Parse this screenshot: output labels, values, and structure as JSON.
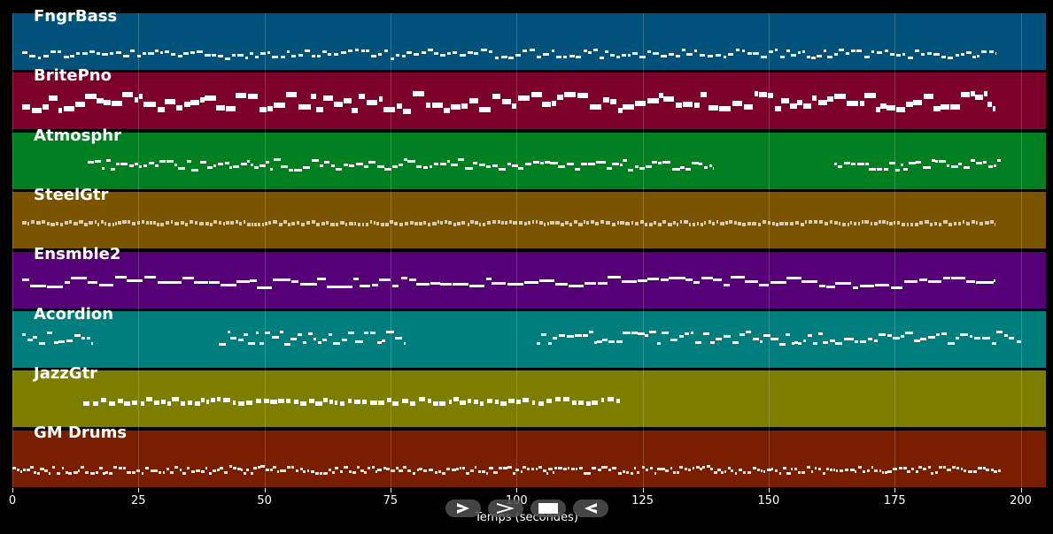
{
  "tracks": [
    {
      "name": "FngrBass",
      "color": "#00527a"
    },
    {
      "name": "BritePno",
      "color": "#7b002a"
    },
    {
      "name": "Atmosphr",
      "color": "#007f20"
    },
    {
      "name": "SteelGtr",
      "color": "#7b5400"
    },
    {
      "name": "Ensmble2",
      "color": "#560078"
    },
    {
      "name": "Acordion",
      "color": "#007d7d"
    },
    {
      "name": "JazzGtr",
      "color": "#7d7d00"
    },
    {
      "name": "GM Drums",
      "color": "#7a1e00"
    }
  ],
  "axis": {
    "label": "Temps (secondes)",
    "ticks": [
      "0",
      "25",
      "50",
      "75",
      "100",
      "125",
      "150",
      "175",
      "200"
    ],
    "range": [
      0,
      205
    ]
  },
  "controls": [
    {
      "name": "play-button",
      "icon": "play-outline-icon"
    },
    {
      "name": "forward-button",
      "icon": "chevron-right-icon"
    },
    {
      "name": "stop-button",
      "icon": "stop-icon"
    },
    {
      "name": "rewind-button",
      "icon": "play-back-outline-icon"
    }
  ]
}
